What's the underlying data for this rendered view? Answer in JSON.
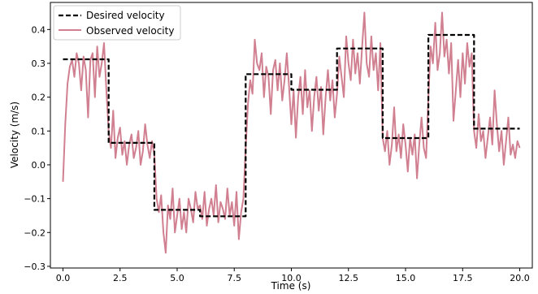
{
  "chart_data": {
    "type": "line",
    "xlabel": "Time (s)",
    "ylabel": "Velocity (m/s)",
    "xlim": [
      -0.55,
      20.55
    ],
    "ylim": [
      -0.305,
      0.48
    ],
    "x_ticks": [
      0.0,
      2.5,
      5.0,
      7.5,
      10.0,
      12.5,
      15.0,
      17.5,
      20.0
    ],
    "x_tick_labels": [
      "0.0",
      "2.5",
      "5.0",
      "7.5",
      "10.0",
      "12.5",
      "15.0",
      "17.5",
      "20.0"
    ],
    "y_ticks": [
      -0.3,
      -0.2,
      -0.1,
      0.0,
      0.1,
      0.2,
      0.3,
      0.4
    ],
    "y_tick_labels": [
      "−0.3",
      "−0.2",
      "−0.1",
      "0.0",
      "0.1",
      "0.2",
      "0.3",
      "0.4"
    ],
    "grid": false,
    "legend_position": "top-left",
    "series": [
      {
        "name": "Desired velocity",
        "style": "dashed",
        "color": "#000000",
        "x": [
          0.0,
          2.0,
          2.0,
          4.0,
          4.0,
          6.0,
          6.0,
          8.0,
          8.0,
          10.0,
          10.0,
          12.0,
          12.0,
          14.0,
          14.0,
          16.0,
          16.0,
          18.0,
          18.0,
          20.0
        ],
        "y": [
          0.312,
          0.312,
          0.065,
          0.065,
          -0.133,
          -0.133,
          -0.152,
          -0.152,
          0.268,
          0.268,
          0.222,
          0.222,
          0.344,
          0.344,
          0.079,
          0.079,
          0.384,
          0.384,
          0.107,
          0.107
        ]
      },
      {
        "name": "Observed velocity",
        "style": "solid",
        "color": "#d08090",
        "x": [
          0.0,
          0.1,
          0.2,
          0.3,
          0.4,
          0.5,
          0.6,
          0.7,
          0.8,
          0.9,
          1.0,
          1.1,
          1.2,
          1.3,
          1.4,
          1.5,
          1.6,
          1.7,
          1.8,
          1.9,
          2.0,
          2.1,
          2.2,
          2.3,
          2.4,
          2.5,
          2.6,
          2.7,
          2.8,
          2.9,
          3.0,
          3.1,
          3.2,
          3.3,
          3.4,
          3.5,
          3.6,
          3.7,
          3.8,
          3.9,
          4.0,
          4.1,
          4.2,
          4.3,
          4.4,
          4.5,
          4.6,
          4.7,
          4.8,
          4.9,
          5.0,
          5.1,
          5.2,
          5.3,
          5.4,
          5.5,
          5.6,
          5.7,
          5.8,
          5.9,
          6.0,
          6.1,
          6.2,
          6.3,
          6.4,
          6.5,
          6.6,
          6.7,
          6.8,
          6.9,
          7.0,
          7.1,
          7.2,
          7.3,
          7.4,
          7.5,
          7.6,
          7.7,
          7.8,
          7.9,
          8.0,
          8.1,
          8.2,
          8.3,
          8.4,
          8.5,
          8.6,
          8.7,
          8.8,
          8.9,
          9.0,
          9.1,
          9.2,
          9.3,
          9.4,
          9.5,
          9.6,
          9.7,
          9.8,
          9.9,
          10.0,
          10.1,
          10.2,
          10.3,
          10.4,
          10.5,
          10.6,
          10.7,
          10.8,
          10.9,
          11.0,
          11.1,
          11.2,
          11.3,
          11.4,
          11.5,
          11.6,
          11.7,
          11.8,
          11.9,
          12.0,
          12.1,
          12.2,
          12.3,
          12.4,
          12.5,
          12.6,
          12.7,
          12.8,
          12.9,
          13.0,
          13.1,
          13.2,
          13.3,
          13.4,
          13.5,
          13.6,
          13.7,
          13.8,
          13.9,
          14.0,
          14.1,
          14.2,
          14.3,
          14.4,
          14.5,
          14.6,
          14.7,
          14.8,
          14.9,
          15.0,
          15.1,
          15.2,
          15.3,
          15.4,
          15.5,
          15.6,
          15.7,
          15.8,
          15.9,
          16.0,
          16.1,
          16.2,
          16.3,
          16.4,
          16.5,
          16.6,
          16.7,
          16.8,
          16.9,
          17.0,
          17.1,
          17.2,
          17.3,
          17.4,
          17.5,
          17.6,
          17.7,
          17.8,
          17.9,
          18.0,
          18.1,
          18.2,
          18.3,
          18.4,
          18.5,
          18.6,
          18.7,
          18.8,
          18.9,
          19.0,
          19.1,
          19.2,
          19.3,
          19.4,
          19.5,
          19.6,
          19.7,
          19.8,
          19.9,
          20.0
        ],
        "y": [
          -0.05,
          0.12,
          0.24,
          0.29,
          0.31,
          0.26,
          0.33,
          0.3,
          0.22,
          0.32,
          0.28,
          0.14,
          0.31,
          0.33,
          0.2,
          0.35,
          0.26,
          0.3,
          0.36,
          0.22,
          0.1,
          0.05,
          0.16,
          0.02,
          0.08,
          0.11,
          0.03,
          0.07,
          0.0,
          0.06,
          0.09,
          0.02,
          0.05,
          0.1,
          0.0,
          0.04,
          0.12,
          0.06,
          0.02,
          0.07,
          0.03,
          -0.1,
          -0.14,
          -0.09,
          -0.2,
          -0.26,
          -0.12,
          -0.16,
          -0.07,
          -0.2,
          -0.15,
          -0.1,
          -0.19,
          -0.14,
          -0.2,
          -0.1,
          -0.13,
          -0.17,
          -0.08,
          -0.13,
          -0.12,
          -0.16,
          -0.08,
          -0.18,
          -0.13,
          -0.1,
          -0.15,
          -0.06,
          -0.17,
          -0.11,
          -0.13,
          -0.16,
          -0.07,
          -0.15,
          -0.11,
          -0.18,
          -0.08,
          -0.22,
          -0.14,
          -0.1,
          0.05,
          0.18,
          0.25,
          0.21,
          0.37,
          0.3,
          0.28,
          0.33,
          0.2,
          0.29,
          0.26,
          0.15,
          0.28,
          0.31,
          0.22,
          0.3,
          0.19,
          0.25,
          0.33,
          0.23,
          0.12,
          0.22,
          0.08,
          0.2,
          0.26,
          0.15,
          0.28,
          0.17,
          0.22,
          0.1,
          0.2,
          0.26,
          0.16,
          0.23,
          0.09,
          0.2,
          0.28,
          0.19,
          0.25,
          0.14,
          0.21,
          0.32,
          0.26,
          0.2,
          0.38,
          0.3,
          0.25,
          0.37,
          0.27,
          0.33,
          0.24,
          0.35,
          0.45,
          0.3,
          0.26,
          0.38,
          0.28,
          0.33,
          0.22,
          0.36,
          0.08,
          0.04,
          0.1,
          0.0,
          0.06,
          0.17,
          0.04,
          0.09,
          0.02,
          0.12,
          0.06,
          -0.02,
          0.08,
          0.03,
          0.09,
          -0.04,
          0.06,
          0.14,
          0.05,
          0.02,
          0.2,
          0.35,
          0.3,
          0.42,
          0.28,
          0.33,
          0.45,
          0.32,
          0.37,
          0.27,
          0.36,
          0.13,
          0.22,
          0.31,
          0.2,
          0.33,
          0.24,
          0.36,
          0.29,
          0.33,
          0.1,
          0.05,
          0.15,
          0.07,
          0.1,
          0.02,
          0.08,
          0.14,
          0.06,
          0.22,
          0.12,
          0.04,
          0.1,
          0.0,
          0.07,
          0.14,
          0.03,
          0.06,
          0.02,
          0.07,
          0.05
        ]
      }
    ]
  }
}
